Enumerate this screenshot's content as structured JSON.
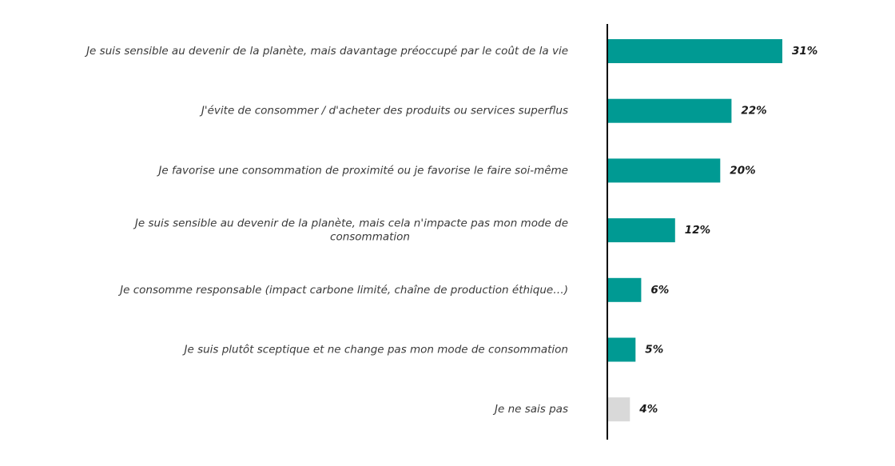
{
  "chart_data": {
    "type": "bar",
    "orientation": "horizontal",
    "categories": [
      [
        "Je suis sensible au devenir de la planète, mais davantage préoccupé par le coût de la vie"
      ],
      [
        "J'évite de consommer / d'acheter des produits ou services superflus"
      ],
      [
        "Je favorise une consommation de proximité ou je favorise le faire soi-même"
      ],
      [
        "Je suis sensible au devenir de la planète, mais cela n'impacte pas mon mode de",
        "consommation"
      ],
      [
        "Je consomme responsable (impact carbone limité, chaîne de production éthique…)"
      ],
      [
        "Je suis plutôt sceptique et ne change pas mon mode de consommation"
      ],
      [
        "Je ne sais pas"
      ]
    ],
    "values": [
      31,
      22,
      20,
      12,
      6,
      5,
      4
    ],
    "value_labels": [
      "31%",
      "22%",
      "20%",
      "12%",
      "6%",
      "5%",
      "4%"
    ],
    "bar_colors": [
      "#009a93",
      "#009a93",
      "#009a93",
      "#009a93",
      "#009a93",
      "#009a93",
      "#d9d9d9"
    ],
    "xlim": [
      0,
      31
    ],
    "grid": false,
    "legend": "none"
  }
}
